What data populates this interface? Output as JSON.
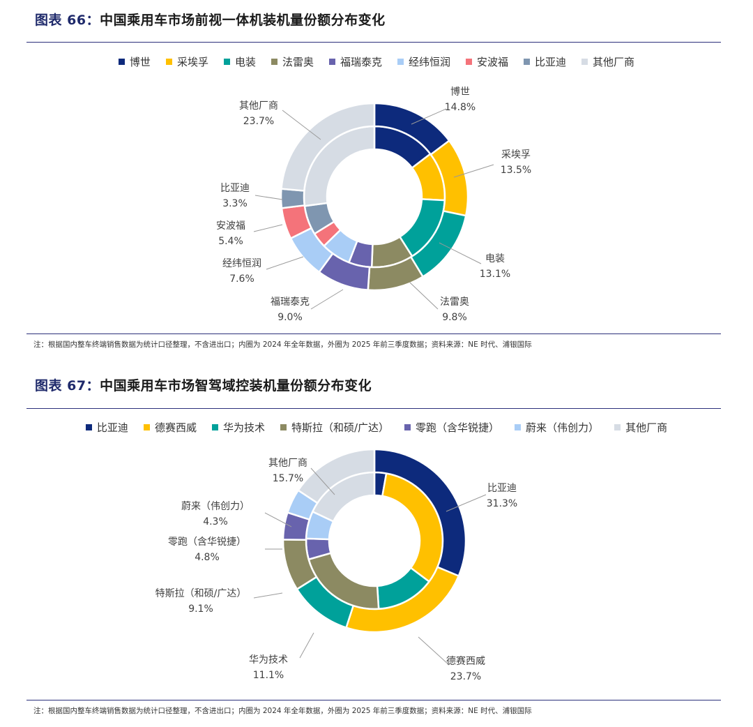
{
  "figures": [
    {
      "title_prefix": "图表 66：",
      "title_rest": "中国乘用车市场前视一体机装机量份额分布变化",
      "note": "注：根据国内整车终端销售数据为统计口径整理，不含进出口；内圈为 2024 年全年数据，外圈为 2025 年前三季度数据；资料来源：NE 时代、浦银国际",
      "chart_data": {
        "type": "pie",
        "subtype": "double-donut",
        "categories": [
          "博世",
          "采埃孚",
          "电装",
          "法雷奥",
          "福瑞泰克",
          "经纬恒润",
          "安波福",
          "比亚迪",
          "其他厂商"
        ],
        "colors": [
          "#0d2a7c",
          "#ffc000",
          "#00a19a",
          "#8c8a62",
          "#6863ad",
          "#a9cdf6",
          "#f4737a",
          "#7f96b0",
          "#d6dce4"
        ],
        "legend_position": "top",
        "outer_label": "2025年前三季度",
        "inner_label": "2024年全年",
        "outer_values": [
          14.8,
          13.5,
          13.1,
          9.8,
          9.0,
          7.6,
          5.4,
          3.3,
          23.7
        ],
        "inner_values": [
          14.6,
          11.2,
          15.2,
          9.6,
          5.3,
          6.8,
          3.5,
          6.7,
          27.1
        ],
        "data_labels": [
          "14.8%",
          "13.5%",
          "13.1%",
          "9.8%",
          "9.0%",
          "7.6%",
          "5.4%",
          "3.3%",
          "23.7%"
        ]
      }
    },
    {
      "title_prefix": "图表 67：",
      "title_rest": "中国乘用车市场智驾域控装机量份额分布变化",
      "note": "注：根据国内整车终端销售数据为统计口径整理，不含进出口；内圈为 2024 年全年数据，外圈为 2025 年前三季度数据；资料来源：NE 时代、浦银国际",
      "chart_data": {
        "type": "pie",
        "subtype": "double-donut",
        "categories": [
          "比亚迪",
          "德赛西威",
          "华为技术",
          "特斯拉（和硕/广达）",
          "零跑（含华锐捷）",
          "蔚来（伟创力）",
          "其他厂商"
        ],
        "colors": [
          "#0d2a7c",
          "#ffc000",
          "#00a19a",
          "#8c8a62",
          "#6863ad",
          "#a9cdf6",
          "#d6dce4"
        ],
        "legend_position": "top",
        "outer_label": "2025年前三季度",
        "inner_label": "2024年全年",
        "outer_values": [
          31.3,
          23.7,
          11.1,
          9.1,
          4.8,
          4.3,
          15.7
        ],
        "inner_values": [
          2.8,
          32.4,
          13.8,
          21.6,
          4.9,
          6.5,
          18.0
        ],
        "data_labels": [
          "31.3%",
          "23.7%",
          "11.1%",
          "9.1%",
          "4.8%",
          "4.3%",
          "15.7%"
        ]
      }
    }
  ]
}
